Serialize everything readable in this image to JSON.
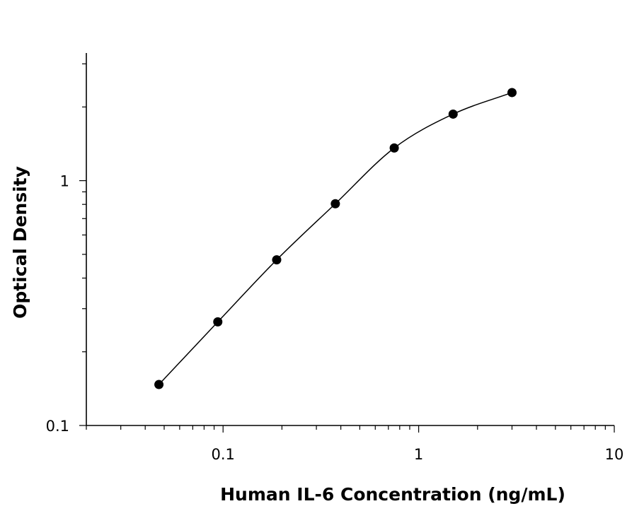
{
  "chart_data": {
    "type": "scatter",
    "xlabel": "Human IL-6 Concentration (ng/mL)",
    "ylabel": "Optical Density",
    "x_scale": "log",
    "y_scale": "log",
    "xlim": [
      0.02,
      10
    ],
    "ylim": [
      0.1,
      3.3
    ],
    "x_ticks": [
      {
        "value": 0.1,
        "label": "0.1"
      },
      {
        "value": 1,
        "label": "1"
      },
      {
        "value": 10,
        "label": "10"
      }
    ],
    "y_ticks": [
      {
        "value": 0.1,
        "label": "0.1"
      },
      {
        "value": 1,
        "label": "1"
      }
    ],
    "grid": false,
    "legend": "none",
    "marker_color": "#000000",
    "curve_color": "#000000",
    "series": [
      {
        "x": [
          0.047,
          0.094,
          0.188,
          0.375,
          0.75,
          1.5,
          3.0
        ],
        "y": [
          0.147,
          0.265,
          0.475,
          0.805,
          1.36,
          1.87,
          2.29
        ]
      }
    ]
  }
}
